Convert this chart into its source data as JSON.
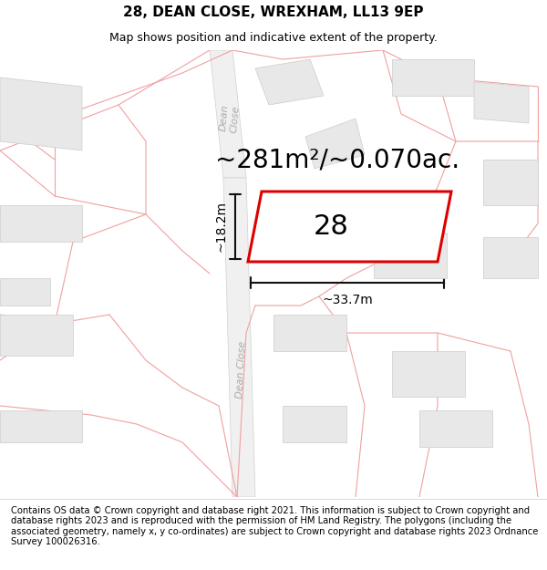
{
  "title": "28, DEAN CLOSE, WREXHAM, LL13 9EP",
  "subtitle": "Map shows position and indicative extent of the property.",
  "area_text": "~281m²/~0.070ac.",
  "width_label": "~33.7m",
  "height_label": "~18.2m",
  "house_number": "28",
  "footer_text": "Contains OS data © Crown copyright and database right 2021. This information is subject to Crown copyright and database rights 2023 and is reproduced with the permission of HM Land Registry. The polygons (including the associated geometry, namely x, y co-ordinates) are subject to Crown copyright and database rights 2023 Ordnance Survey 100026316.",
  "map_bg": "#ffffff",
  "building_color": "#e8e8e8",
  "building_edge": "#cccccc",
  "plot_edge": "#dd0000",
  "road_line_color": "#f0a0a0",
  "road_fill_color": "#f5f5f5",
  "dim_color": "#111111",
  "dean_close_color": "#aaaaaa",
  "title_fontsize": 11,
  "subtitle_fontsize": 9,
  "area_fontsize": 20,
  "label_fontsize": 10,
  "footer_fontsize": 7.2,
  "number_fontsize": 22,
  "dean_close_fontsize": 8
}
